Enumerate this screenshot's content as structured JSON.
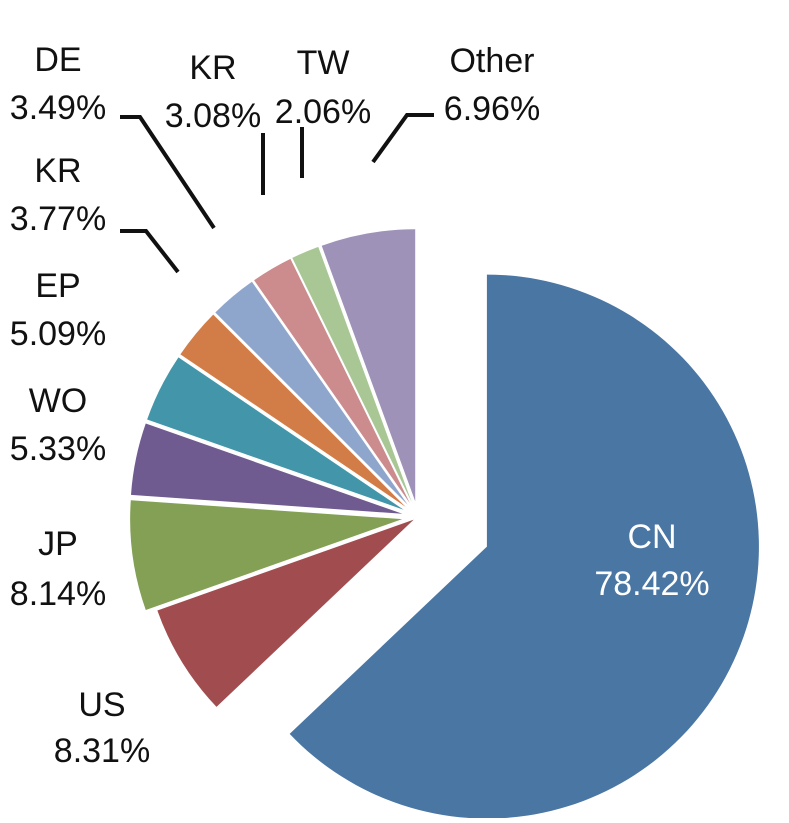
{
  "chart_data": {
    "type": "pie",
    "title": "",
    "categories": [
      "CN",
      "US",
      "JP",
      "WO",
      "EP",
      "KR",
      "DE",
      "KR",
      "TW",
      "Other"
    ],
    "values": [
      78.42,
      8.31,
      8.14,
      5.33,
      5.09,
      3.77,
      3.49,
      3.08,
      2.06,
      6.96
    ],
    "value_labels": [
      "78.42%",
      "8.31%",
      "8.14%",
      "5.33%",
      "5.09%",
      "3.77%",
      "3.49%",
      "3.08%",
      "2.06%",
      "6.96%"
    ],
    "exploded": true,
    "legend": "none",
    "colors": [
      "#4a76a3",
      "#a14c4e",
      "#83a055",
      "#6f5b90",
      "#4396a9",
      "#d27d47",
      "#8fa6cc",
      "#cc8b8d",
      "#a9c795",
      "#9e92b8"
    ]
  }
}
